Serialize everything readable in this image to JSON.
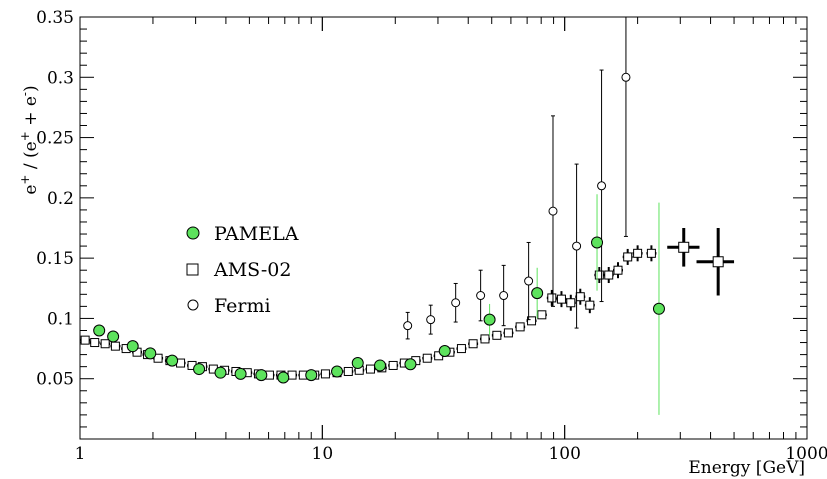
{
  "chart_data": {
    "type": "scatter",
    "xscale": "log",
    "xlim": [
      1,
      1000
    ],
    "ylim": [
      0,
      0.35
    ],
    "xlabel": "Energy [GeV]",
    "ylabel": "e⁺ / (e⁺ + e⁻)",
    "ylabel_parts": {
      "a": "e",
      "b": "+",
      "c": " / (e",
      "d": "+",
      "e": " + e",
      "f": "-",
      "g": ")"
    },
    "x_ticks": [
      "1",
      "10",
      "100",
      "1000"
    ],
    "y_ticks": [
      "0.05",
      "0.1",
      "0.15",
      "0.2",
      "0.25",
      "0.3",
      "0.35"
    ],
    "grid": false,
    "legend_position": "left-center",
    "series": [
      {
        "name": "PAMELA",
        "marker": "filled-circle",
        "color": "#5de35d",
        "points": [
          {
            "x": 1.2,
            "y": 0.09
          },
          {
            "x": 1.37,
            "y": 0.085
          },
          {
            "x": 1.65,
            "y": 0.077
          },
          {
            "x": 1.95,
            "y": 0.071
          },
          {
            "x": 2.4,
            "y": 0.065
          },
          {
            "x": 3.1,
            "y": 0.058
          },
          {
            "x": 3.8,
            "y": 0.055
          },
          {
            "x": 4.6,
            "y": 0.054
          },
          {
            "x": 5.6,
            "y": 0.053
          },
          {
            "x": 6.9,
            "y": 0.051
          },
          {
            "x": 9.0,
            "y": 0.053
          },
          {
            "x": 11.5,
            "y": 0.056
          },
          {
            "x": 14.0,
            "y": 0.063
          },
          {
            "x": 17.3,
            "y": 0.061
          },
          {
            "x": 23.1,
            "y": 0.062
          },
          {
            "x": 32.0,
            "y": 0.073
          },
          {
            "x": 49.0,
            "y": 0.099,
            "err": 0.013
          },
          {
            "x": 77.0,
            "y": 0.121,
            "err": 0.021
          },
          {
            "x": 136.0,
            "y": 0.163,
            "err": 0.04
          },
          {
            "x": 245.0,
            "y": 0.108,
            "err": 0.088
          }
        ]
      },
      {
        "name": "AMS-02",
        "marker": "open-square",
        "color": "#000000",
        "points": [
          {
            "x": 1.05,
            "y": 0.082
          },
          {
            "x": 1.15,
            "y": 0.08
          },
          {
            "x": 1.27,
            "y": 0.079
          },
          {
            "x": 1.4,
            "y": 0.077
          },
          {
            "x": 1.55,
            "y": 0.075
          },
          {
            "x": 1.72,
            "y": 0.072
          },
          {
            "x": 1.9,
            "y": 0.07
          },
          {
            "x": 2.1,
            "y": 0.067
          },
          {
            "x": 2.35,
            "y": 0.065
          },
          {
            "x": 2.6,
            "y": 0.063
          },
          {
            "x": 2.9,
            "y": 0.061
          },
          {
            "x": 3.2,
            "y": 0.06
          },
          {
            "x": 3.55,
            "y": 0.058
          },
          {
            "x": 3.95,
            "y": 0.057
          },
          {
            "x": 4.4,
            "y": 0.056
          },
          {
            "x": 4.9,
            "y": 0.055
          },
          {
            "x": 5.45,
            "y": 0.054
          },
          {
            "x": 6.05,
            "y": 0.053
          },
          {
            "x": 6.75,
            "y": 0.053
          },
          {
            "x": 7.5,
            "y": 0.053
          },
          {
            "x": 8.35,
            "y": 0.053
          },
          {
            "x": 9.3,
            "y": 0.053
          },
          {
            "x": 10.3,
            "y": 0.054
          },
          {
            "x": 11.5,
            "y": 0.055
          },
          {
            "x": 12.8,
            "y": 0.056
          },
          {
            "x": 14.2,
            "y": 0.057
          },
          {
            "x": 15.8,
            "y": 0.058
          },
          {
            "x": 17.6,
            "y": 0.059
          },
          {
            "x": 19.6,
            "y": 0.061
          },
          {
            "x": 21.8,
            "y": 0.063
          },
          {
            "x": 24.3,
            "y": 0.065
          },
          {
            "x": 27.1,
            "y": 0.067
          },
          {
            "x": 30.2,
            "y": 0.069
          },
          {
            "x": 33.6,
            "y": 0.072
          },
          {
            "x": 37.5,
            "y": 0.075
          },
          {
            "x": 41.9,
            "y": 0.079
          },
          {
            "x": 46.9,
            "y": 0.083
          },
          {
            "x": 52.5,
            "y": 0.086
          },
          {
            "x": 58.6,
            "y": 0.088
          },
          {
            "x": 65.5,
            "y": 0.093
          },
          {
            "x": 73.0,
            "y": 0.098
          },
          {
            "x": 80.5,
            "y": 0.103
          },
          {
            "x": 88.5,
            "y": 0.117
          },
          {
            "x": 97.0,
            "y": 0.116
          },
          {
            "x": 106.0,
            "y": 0.113
          },
          {
            "x": 116.0,
            "y": 0.118
          },
          {
            "x": 127.0,
            "y": 0.111
          },
          {
            "x": 139.0,
            "y": 0.136
          },
          {
            "x": 152.0,
            "y": 0.136
          },
          {
            "x": 166.0,
            "y": 0.14
          },
          {
            "x": 182.0,
            "y": 0.151
          },
          {
            "x": 200.0,
            "y": 0.154
          },
          {
            "x": 228.0,
            "y": 0.154
          },
          {
            "x": 310.0,
            "y": 0.159,
            "xlo": 265,
            "xhi": 360,
            "err": 0.016
          },
          {
            "x": 430.0,
            "y": 0.147,
            "xlo": 350,
            "xhi": 500,
            "err": 0.028
          }
        ]
      },
      {
        "name": "Fermi",
        "marker": "open-circle",
        "color": "#000000",
        "points": [
          {
            "x": 22.5,
            "y": 0.094,
            "err": 0.011
          },
          {
            "x": 28.0,
            "y": 0.099,
            "err": 0.012
          },
          {
            "x": 35.5,
            "y": 0.113,
            "err": 0.016
          },
          {
            "x": 45.0,
            "y": 0.119,
            "err": 0.021
          },
          {
            "x": 56.0,
            "y": 0.119,
            "err": 0.025
          },
          {
            "x": 71.0,
            "y": 0.131,
            "err": 0.032
          },
          {
            "x": 89.5,
            "y": 0.189,
            "err": 0.079
          },
          {
            "x": 112.0,
            "y": 0.16,
            "err": 0.068
          },
          {
            "x": 142.0,
            "y": 0.21,
            "err": 0.096
          },
          {
            "x": 179.0,
            "y": 0.3,
            "err": 0.132
          }
        ]
      }
    ]
  }
}
